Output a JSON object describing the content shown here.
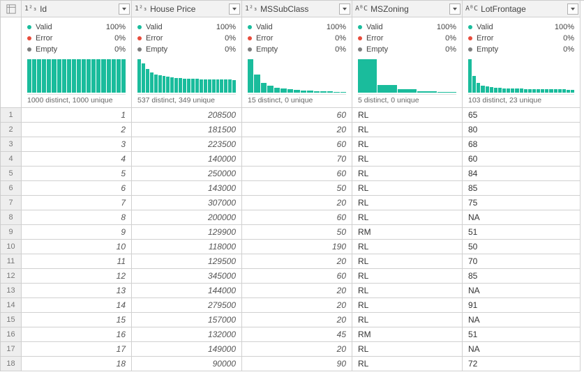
{
  "colors": {
    "teal": "#1abc9c",
    "valid_dot": "#1abc9c",
    "error_dot": "#e74c3c",
    "empty_dot": "#7f7f7f",
    "header_bg": "#f2f2f2",
    "border": "#d0d0d0"
  },
  "labels": {
    "valid": "Valid",
    "error": "Error",
    "empty": "Empty"
  },
  "columns": [
    {
      "name": "Id",
      "type_icon": "1²₃",
      "data_type": "number",
      "stats": {
        "valid_pct": "100%",
        "error_pct": "0%",
        "empty_pct": "0%"
      },
      "distinct": "1000 distinct, 1000 unique",
      "histogram": [
        100,
        100,
        100,
        100,
        100,
        100,
        100,
        100,
        100,
        100,
        100,
        100,
        100,
        100,
        100,
        100,
        100,
        100,
        100,
        100
      ]
    },
    {
      "name": "House Price",
      "type_icon": "1²₃",
      "data_type": "number",
      "stats": {
        "valid_pct": "100%",
        "error_pct": "0%",
        "empty_pct": "0%"
      },
      "distinct": "537 distinct, 349 unique",
      "histogram": [
        100,
        88,
        70,
        60,
        55,
        52,
        50,
        48,
        46,
        44,
        43,
        42,
        42,
        41,
        41,
        40,
        40,
        40,
        40,
        39,
        39,
        39,
        39,
        38
      ]
    },
    {
      "name": "MSSubClass",
      "type_icon": "1²₃",
      "data_type": "number",
      "stats": {
        "valid_pct": "100%",
        "error_pct": "0%",
        "empty_pct": "0%"
      },
      "distinct": "15 distinct, 0 unique",
      "histogram": [
        100,
        55,
        30,
        20,
        14,
        12,
        10,
        8,
        7,
        6,
        5,
        5,
        4,
        3,
        2
      ]
    },
    {
      "name": "MSZoning",
      "type_icon": "AᴮC",
      "data_type": "text",
      "stats": {
        "valid_pct": "100%",
        "error_pct": "0%",
        "empty_pct": "0%"
      },
      "distinct": "5 distinct, 0 unique",
      "histogram": [
        100,
        22,
        10,
        4,
        2
      ]
    },
    {
      "name": "LotFrontage",
      "type_icon": "AᴮC",
      "data_type": "text",
      "stats": {
        "valid_pct": "100%",
        "error_pct": "0%",
        "empty_pct": "0%"
      },
      "distinct": "103 distinct, 23 unique",
      "histogram": [
        100,
        50,
        30,
        20,
        18,
        16,
        15,
        14,
        13,
        13,
        12,
        12,
        12,
        11,
        11,
        11,
        11,
        10,
        10,
        10,
        10,
        10,
        10,
        9,
        9
      ]
    }
  ],
  "rows": [
    {
      "n": 1,
      "cells": [
        "1",
        "208500",
        "60",
        "RL",
        "65"
      ]
    },
    {
      "n": 2,
      "cells": [
        "2",
        "181500",
        "20",
        "RL",
        "80"
      ]
    },
    {
      "n": 3,
      "cells": [
        "3",
        "223500",
        "60",
        "RL",
        "68"
      ]
    },
    {
      "n": 4,
      "cells": [
        "4",
        "140000",
        "70",
        "RL",
        "60"
      ]
    },
    {
      "n": 5,
      "cells": [
        "5",
        "250000",
        "60",
        "RL",
        "84"
      ]
    },
    {
      "n": 6,
      "cells": [
        "6",
        "143000",
        "50",
        "RL",
        "85"
      ]
    },
    {
      "n": 7,
      "cells": [
        "7",
        "307000",
        "20",
        "RL",
        "75"
      ]
    },
    {
      "n": 8,
      "cells": [
        "8",
        "200000",
        "60",
        "RL",
        "NA"
      ]
    },
    {
      "n": 9,
      "cells": [
        "9",
        "129900",
        "50",
        "RM",
        "51"
      ]
    },
    {
      "n": 10,
      "cells": [
        "10",
        "118000",
        "190",
        "RL",
        "50"
      ]
    },
    {
      "n": 11,
      "cells": [
        "11",
        "129500",
        "20",
        "RL",
        "70"
      ]
    },
    {
      "n": 12,
      "cells": [
        "12",
        "345000",
        "60",
        "RL",
        "85"
      ]
    },
    {
      "n": 13,
      "cells": [
        "13",
        "144000",
        "20",
        "RL",
        "NA"
      ]
    },
    {
      "n": 14,
      "cells": [
        "14",
        "279500",
        "20",
        "RL",
        "91"
      ]
    },
    {
      "n": 15,
      "cells": [
        "15",
        "157000",
        "20",
        "RL",
        "NA"
      ]
    },
    {
      "n": 16,
      "cells": [
        "16",
        "132000",
        "45",
        "RM",
        "51"
      ]
    },
    {
      "n": 17,
      "cells": [
        "17",
        "149000",
        "20",
        "RL",
        "NA"
      ]
    },
    {
      "n": 18,
      "cells": [
        "18",
        "90000",
        "90",
        "RL",
        "72"
      ]
    }
  ]
}
